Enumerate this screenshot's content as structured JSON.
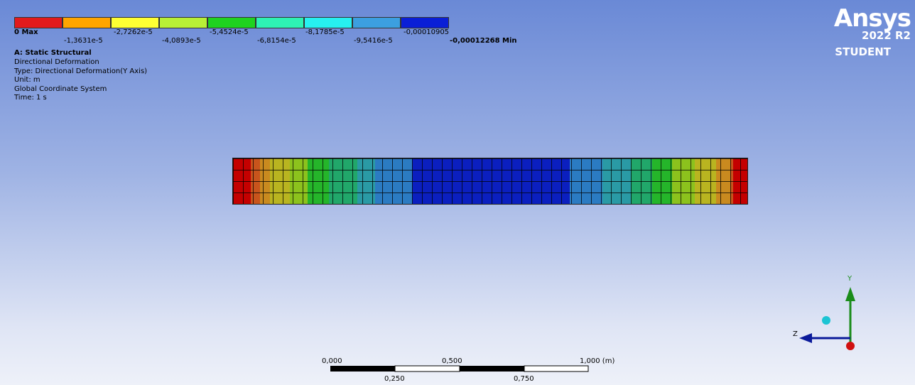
{
  "legend": {
    "colors": [
      "#e31a1c",
      "#ffa500",
      "#ffff33",
      "#b8f036",
      "#1fd21f",
      "#2ef2b4",
      "#27f0f0",
      "#3c9fe0",
      "#0a1fd6"
    ],
    "labels": [
      "0 Max",
      "-1,3631e-5",
      "-2,7262e-5",
      "-4,0893e-5",
      "-5,4524e-5",
      "-6,8154e-5",
      "-8,1785e-5",
      "-9,5416e-5",
      "-0,00010905",
      "-0,00012268 Min"
    ]
  },
  "info": {
    "title": "A: Static Structural",
    "lines": [
      "Directional Deformation",
      "Type: Directional Deformation(Y Axis)",
      "Unit: m",
      "Global Coordinate System",
      "Time: 1 s"
    ]
  },
  "logo": {
    "name": "Ansys",
    "version": "2022 R2",
    "edition": "STUDENT"
  },
  "scale_bar": {
    "top_labels": [
      "0,000",
      "0,500",
      "1,000 (m)"
    ],
    "bottom_labels": [
      "0,250",
      "0,750"
    ]
  },
  "triad": {
    "y_label": "Y",
    "z_label": "Z"
  }
}
